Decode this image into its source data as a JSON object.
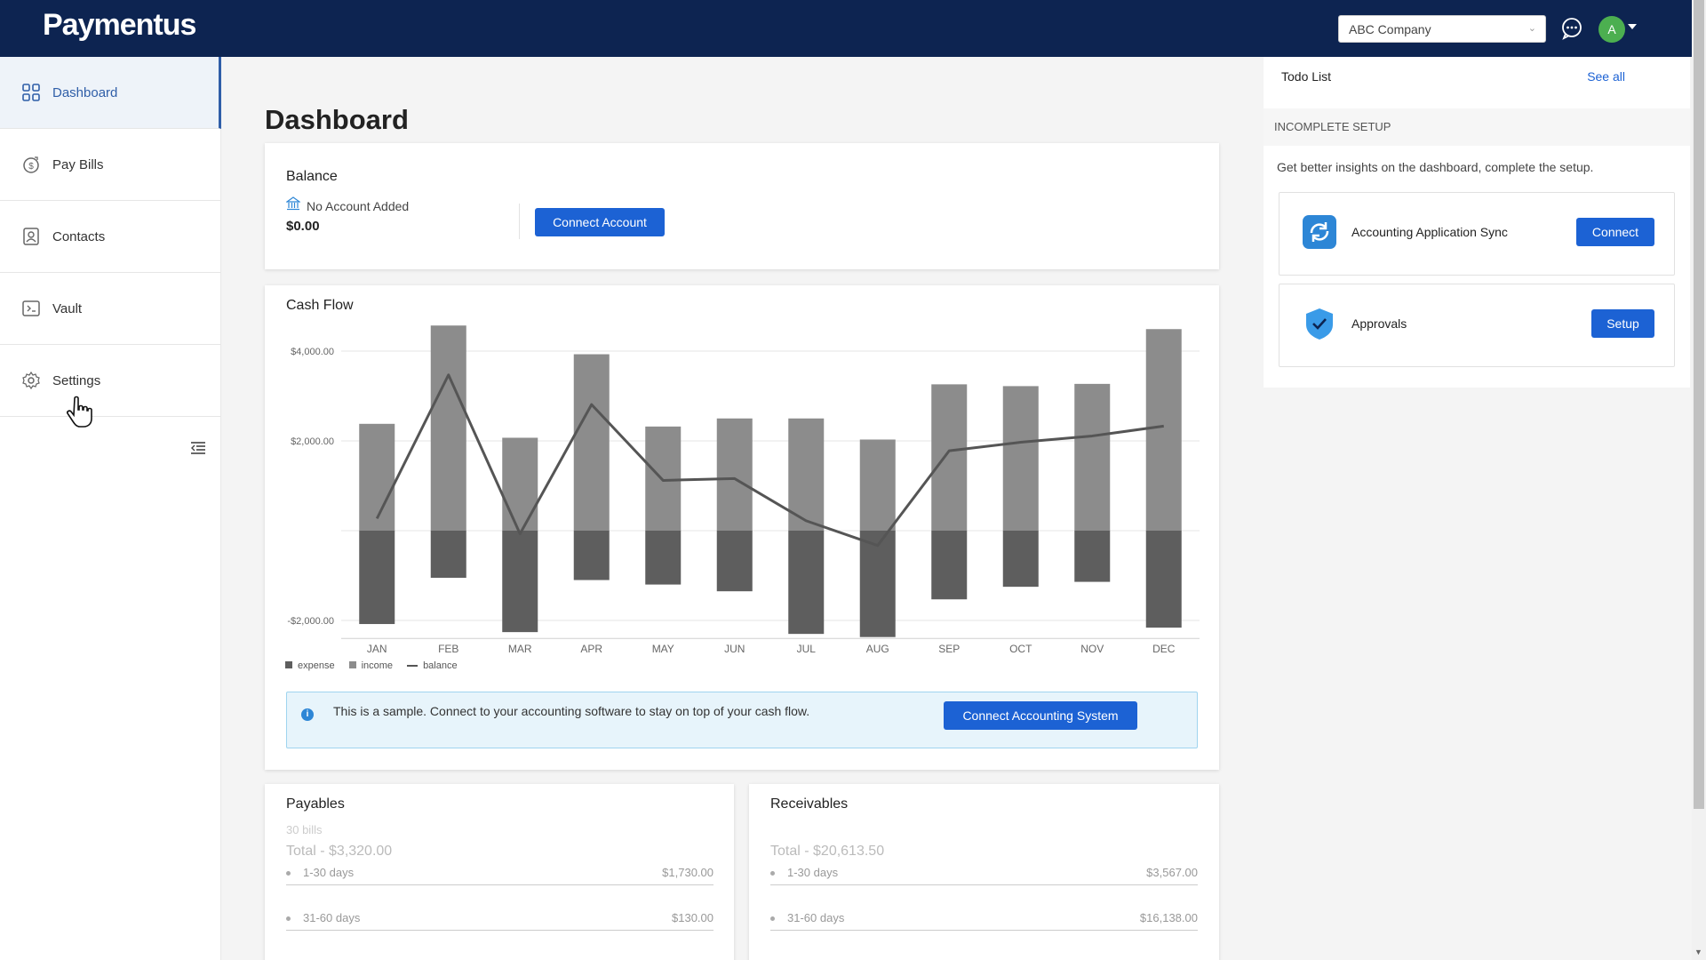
{
  "header": {
    "logo": "Paymentus",
    "company": "ABC Company",
    "avatar_initial": "A"
  },
  "sidebar": {
    "items": [
      {
        "label": "Dashboard",
        "icon": "grid-icon"
      },
      {
        "label": "Pay Bills",
        "icon": "dollar-icon"
      },
      {
        "label": "Contacts",
        "icon": "contact-icon"
      },
      {
        "label": "Vault",
        "icon": "vault-icon"
      },
      {
        "label": "Settings",
        "icon": "gear-icon"
      }
    ]
  },
  "page": {
    "title": "Dashboard"
  },
  "balance": {
    "title": "Balance",
    "status": "No Account Added",
    "amount": "$0.00",
    "connect_label": "Connect Account"
  },
  "cashflow": {
    "title": "Cash Flow",
    "info_text": "This is a sample. Connect to your accounting software to stay on top of your cash flow.",
    "connect_label": "Connect Accounting System"
  },
  "chart_data": {
    "type": "bar",
    "title": "Cash Flow",
    "categories": [
      "JAN",
      "FEB",
      "MAR",
      "APR",
      "MAY",
      "JUN",
      "JUL",
      "AUG",
      "SEP",
      "OCT",
      "NOV",
      "DEC"
    ],
    "y_tick_labels": [
      "$4,000.00",
      "$2,000.00",
      "-$2,000.00"
    ],
    "y_ticks": [
      4000,
      2000,
      -2000
    ],
    "ylim": [
      -2400,
      4600
    ],
    "series": [
      {
        "name": "income",
        "values": [
          2380,
          4570,
          2070,
          3930,
          2320,
          2500,
          2500,
          2030,
          3260,
          3220,
          3270,
          4490
        ]
      },
      {
        "name": "expense",
        "values": [
          -2080,
          -1050,
          -2260,
          -1100,
          -1200,
          -1350,
          -2300,
          -2370,
          -1530,
          -1250,
          -1140,
          -2160
        ]
      },
      {
        "name": "balance",
        "values": [
          270,
          3470,
          -70,
          2810,
          1120,
          1160,
          220,
          -330,
          1780,
          1970,
          2110,
          2330
        ]
      }
    ],
    "legend": [
      "expense",
      "income",
      "balance"
    ],
    "colors": {
      "income": "#8c8c8c",
      "expense": "#5e5e5e",
      "balance": "#555555"
    }
  },
  "payables": {
    "title": "Payables",
    "count": "30 bills",
    "total": "Total - $3,320.00",
    "rows": [
      {
        "label": "1-30 days",
        "value": "$1,730.00"
      },
      {
        "label": "31-60 days",
        "value": "$130.00"
      }
    ]
  },
  "receivables": {
    "title": "Receivables",
    "total": "Total - $20,613.50",
    "rows": [
      {
        "label": "1-30 days",
        "value": "$3,567.00"
      },
      {
        "label": "31-60 days",
        "value": "$16,138.00"
      }
    ]
  },
  "todo": {
    "title": "Todo List",
    "see_all": "See all",
    "section": "INCOMPLETE SETUP",
    "description": "Get better insights on the dashboard, complete the setup.",
    "items": [
      {
        "name": "Accounting Application Sync",
        "action": "Connect",
        "icon": "sync-icon"
      },
      {
        "name": "Approvals",
        "action": "Setup",
        "icon": "shield-check-icon"
      }
    ]
  }
}
